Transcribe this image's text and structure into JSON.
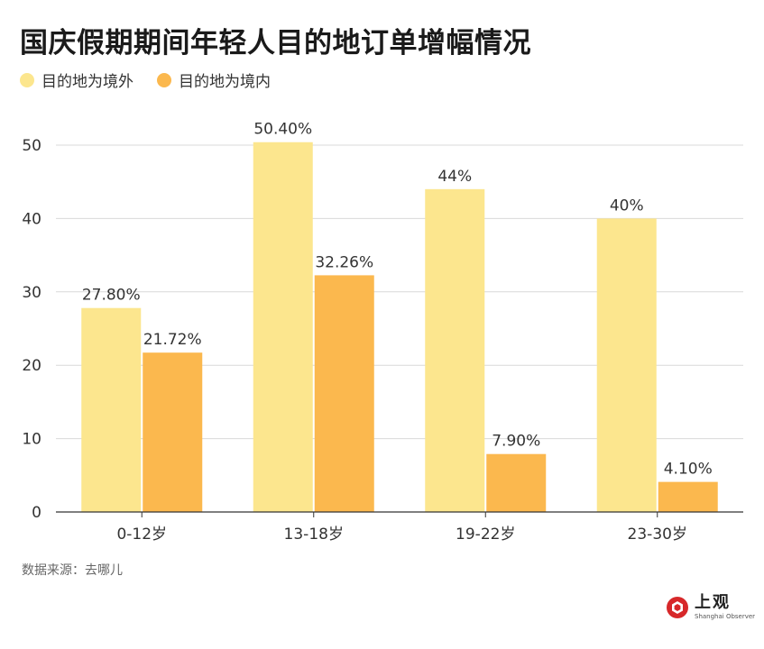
{
  "title": "国庆假期期间年轻人目的地订单增幅情况",
  "source": "数据来源：去哪儿",
  "brand": {
    "name_cn": "上观",
    "name_en": "Shanghai Observer"
  },
  "colors": {
    "series_1": "#fce68e",
    "series_2": "#fbb84e",
    "grid": "#d9d9d9",
    "axis": "#333333",
    "brand_red": "#d7282a"
  },
  "chart_data": {
    "type": "bar",
    "categories": [
      "0-12岁",
      "13-18岁",
      "19-22岁",
      "23-30岁"
    ],
    "series": [
      {
        "name": "目的地为境外",
        "values": [
          27.8,
          50.4,
          44,
          40
        ],
        "labels": [
          "27.80%",
          "50.40%",
          "44%",
          "40%"
        ]
      },
      {
        "name": "目的地为境内",
        "values": [
          21.72,
          32.26,
          7.9,
          4.1
        ],
        "labels": [
          "21.72%",
          "32.26%",
          "7.90%",
          "4.10%"
        ]
      }
    ],
    "ylim": [
      0,
      50
    ],
    "yticks": [
      0,
      10,
      20,
      30,
      40,
      50
    ],
    "grid": true,
    "legend_position": "top-left"
  }
}
